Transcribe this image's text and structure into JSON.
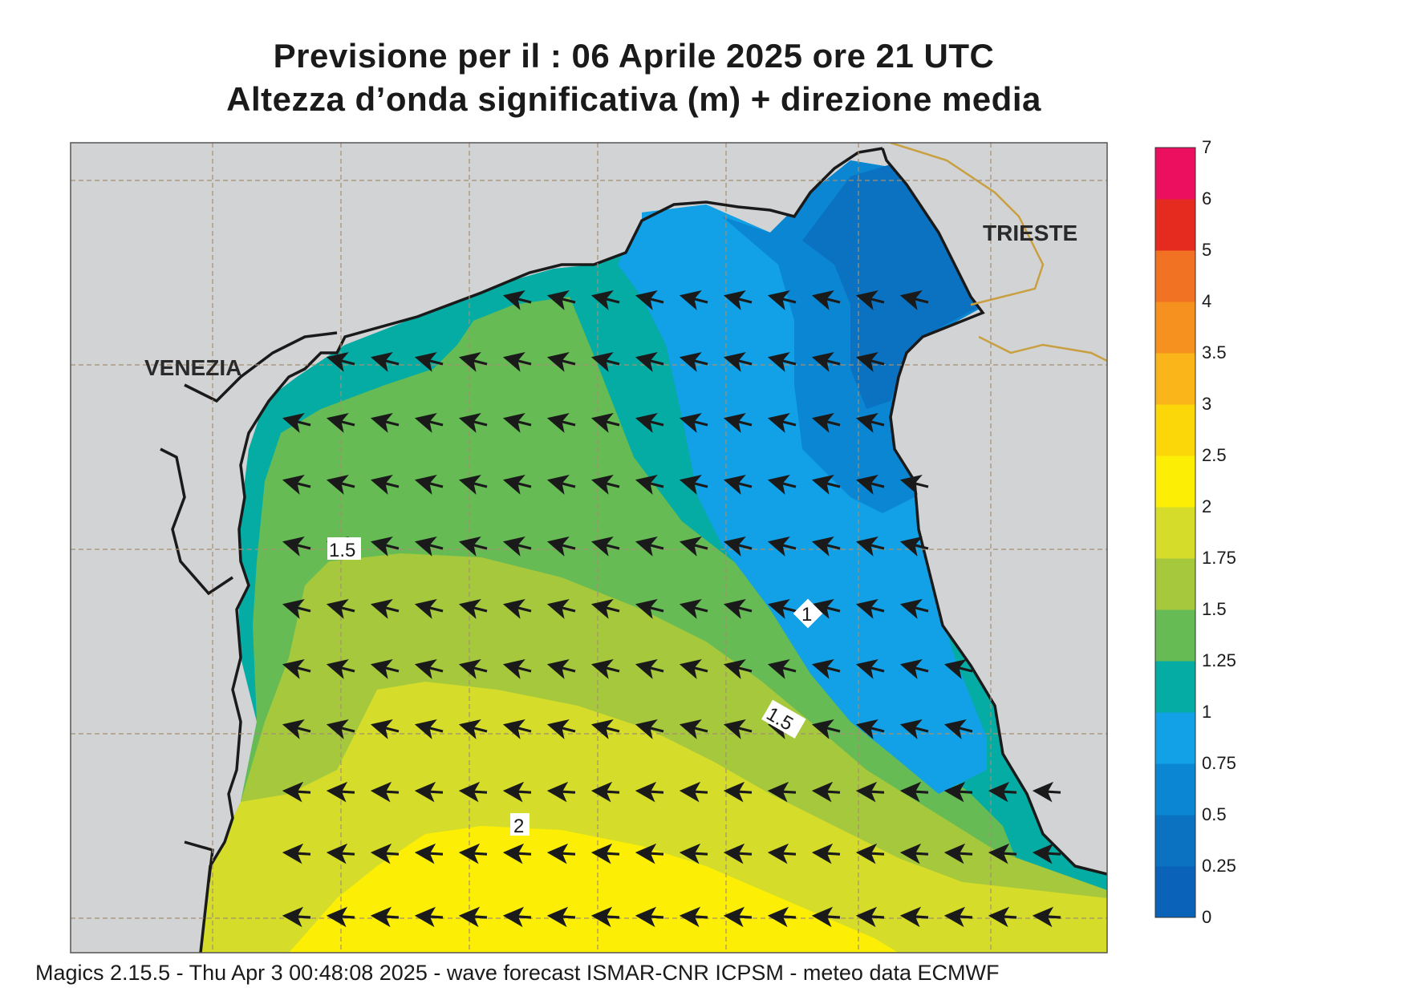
{
  "title": {
    "line1": "Previsione per il  :  06   Aprile  2025   ore 21 UTC",
    "line2": "Altezza d’onda significativa (m) + direzione media"
  },
  "places": {
    "venezia": "VENEZIA",
    "trieste": "TRIESTE"
  },
  "contour_labels": {
    "west": "1.5",
    "east_a": "1",
    "east_b": "1.5",
    "south": "2"
  },
  "colorbar": {
    "levels": [
      "0",
      "0.25",
      "0.5",
      "0.75",
      "1",
      "1.25",
      "1.5",
      "1.75",
      "2",
      "2.5",
      "3",
      "3.5",
      "4",
      "5",
      "6",
      "7"
    ],
    "colors": [
      "#0a63b8",
      "#0b72c2",
      "#0b86d2",
      "#12a0e6",
      "#05aca4",
      "#66bb54",
      "#a6c83c",
      "#d5dd2a",
      "#fcee05",
      "#fbd608",
      "#f9b51a",
      "#f6901e",
      "#f27224",
      "#e52a20",
      "#ec0f60"
    ]
  },
  "land_color": "#d2d3d5",
  "footer": "Magics 2.15.5 - Thu Apr  3 00:48:08 2025 - wave forecast  ISMAR-CNR  ICPSM - meteo data   ECMWF"
}
